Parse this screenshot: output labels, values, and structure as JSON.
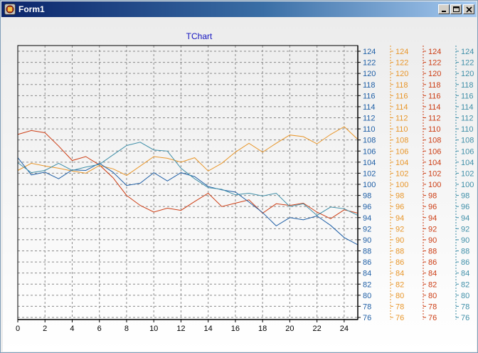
{
  "window": {
    "title": "Form1",
    "icon": "delphi-app-icon",
    "controls": [
      "minimize-icon",
      "maximize-icon",
      "close-icon"
    ]
  },
  "chart_data": {
    "type": "line",
    "title": "TChart",
    "xlabel": "",
    "ylabel": "",
    "grid": true,
    "x_ticks": [
      "0",
      "2",
      "4",
      "6",
      "8",
      "10",
      "12",
      "14",
      "16",
      "18",
      "20",
      "22",
      "24"
    ],
    "xlim": [
      0,
      25
    ],
    "ylim": [
      75,
      125
    ],
    "y_ticks": [
      "124",
      "122",
      "120",
      "118",
      "116",
      "114",
      "112",
      "110",
      "108",
      "106",
      "104",
      "102",
      "100",
      "98",
      "96",
      "94",
      "92",
      "90",
      "88",
      "86",
      "84",
      "82",
      "80",
      "78",
      "76"
    ],
    "axes": [
      {
        "color": "#1f5fa6",
        "ticks": [
          "124",
          "122",
          "120",
          "118",
          "116",
          "114",
          "112",
          "110",
          "108",
          "106",
          "104",
          "102",
          "100",
          "98",
          "96",
          "94",
          "92",
          "90",
          "88",
          "86",
          "84",
          "82",
          "80",
          "78",
          "76"
        ]
      },
      {
        "color": "#e8962a",
        "ticks": [
          "124",
          "122",
          "120",
          "118",
          "116",
          "114",
          "112",
          "110",
          "108",
          "106",
          "104",
          "102",
          "100",
          "98",
          "96",
          "94",
          "92",
          "90",
          "88",
          "86",
          "84",
          "82",
          "80",
          "78",
          "76"
        ]
      },
      {
        "color": "#cc3d14",
        "ticks": [
          "124",
          "122",
          "120",
          "118",
          "116",
          "114",
          "112",
          "110",
          "108",
          "106",
          "104",
          "102",
          "100",
          "98",
          "96",
          "94",
          "92",
          "90",
          "88",
          "86",
          "84",
          "82",
          "80",
          "78",
          "76"
        ]
      },
      {
        "color": "#3f8fa8",
        "ticks": [
          "124",
          "122",
          "120",
          "118",
          "116",
          "114",
          "112",
          "110",
          "108",
          "106",
          "104",
          "102",
          "100",
          "98",
          "96",
          "94",
          "92",
          "90",
          "88",
          "86",
          "84",
          "82",
          "80",
          "78",
          "76"
        ]
      }
    ],
    "x": [
      0,
      1,
      2,
      3,
      4,
      5,
      6,
      7,
      8,
      9,
      10,
      11,
      12,
      13,
      14,
      15,
      16,
      17,
      18,
      19,
      20,
      21,
      22,
      23,
      24,
      25
    ],
    "series": [
      {
        "color": "#cc3d14",
        "values": [
          109,
          109.7,
          109.3,
          106.9,
          104.3,
          105,
          103.5,
          101.2,
          98,
          96.2,
          95,
          95.7,
          95.3,
          96.9,
          98.4,
          96,
          96.6,
          97.2,
          94.8,
          96.5,
          96.2,
          96.6,
          95,
          93.8,
          95.4,
          94.8
        ]
      },
      {
        "color": "#e8962a",
        "values": [
          102.5,
          103.8,
          103.3,
          102.9,
          102.4,
          102,
          103.4,
          102.8,
          101.6,
          103.3,
          105,
          104.7,
          104,
          104.8,
          102.4,
          103.8,
          105.8,
          107.4,
          105.8,
          107.4,
          108.9,
          108.6,
          107.3,
          109,
          110.4,
          108.1
        ]
      },
      {
        "color": "#1f5fa6",
        "values": [
          104.8,
          101.7,
          102.2,
          101,
          102.6,
          102.5,
          103.8,
          102.2,
          99.8,
          100.2,
          102.1,
          100.6,
          102.1,
          101.4,
          99.6,
          99,
          98.6,
          96.8,
          94.9,
          92.5,
          94,
          93.6,
          94.3,
          92.6,
          90.4,
          89.1
        ]
      },
      {
        "color": "#3f8fa8",
        "values": [
          103.9,
          102.1,
          102.5,
          103.8,
          102.5,
          103.1,
          103.6,
          105.3,
          107,
          107.6,
          106.2,
          106,
          102.9,
          101,
          99.4,
          99.1,
          98.1,
          98.4,
          97.9,
          98.4,
          96,
          96.5,
          94.4,
          95.9,
          95.6,
          94.4
        ]
      }
    ]
  }
}
